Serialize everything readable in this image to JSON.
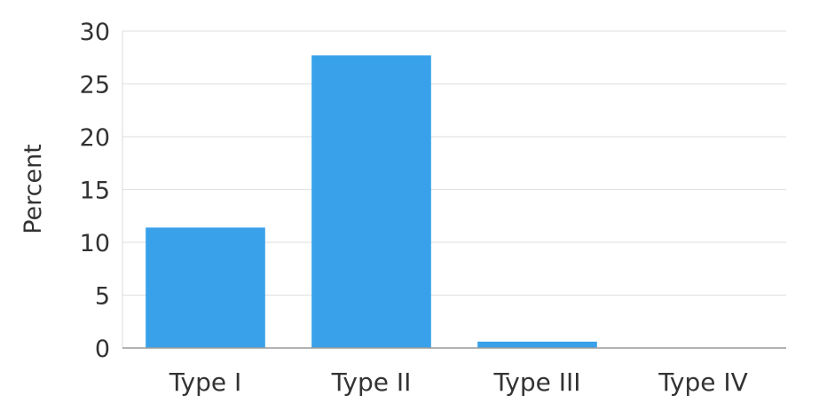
{
  "chart_data": {
    "type": "bar",
    "categories": [
      "Type I",
      "Type II",
      "Type III",
      "Type IV"
    ],
    "values": [
      11.4,
      27.7,
      0.6,
      0
    ],
    "title": "",
    "xlabel": "",
    "ylabel": "Percent",
    "ylim": [
      0,
      30
    ],
    "yticks": [
      0,
      5,
      10,
      15,
      20,
      25,
      30
    ],
    "grid": true,
    "legend": "none",
    "bar_color": "#38a1ea"
  }
}
